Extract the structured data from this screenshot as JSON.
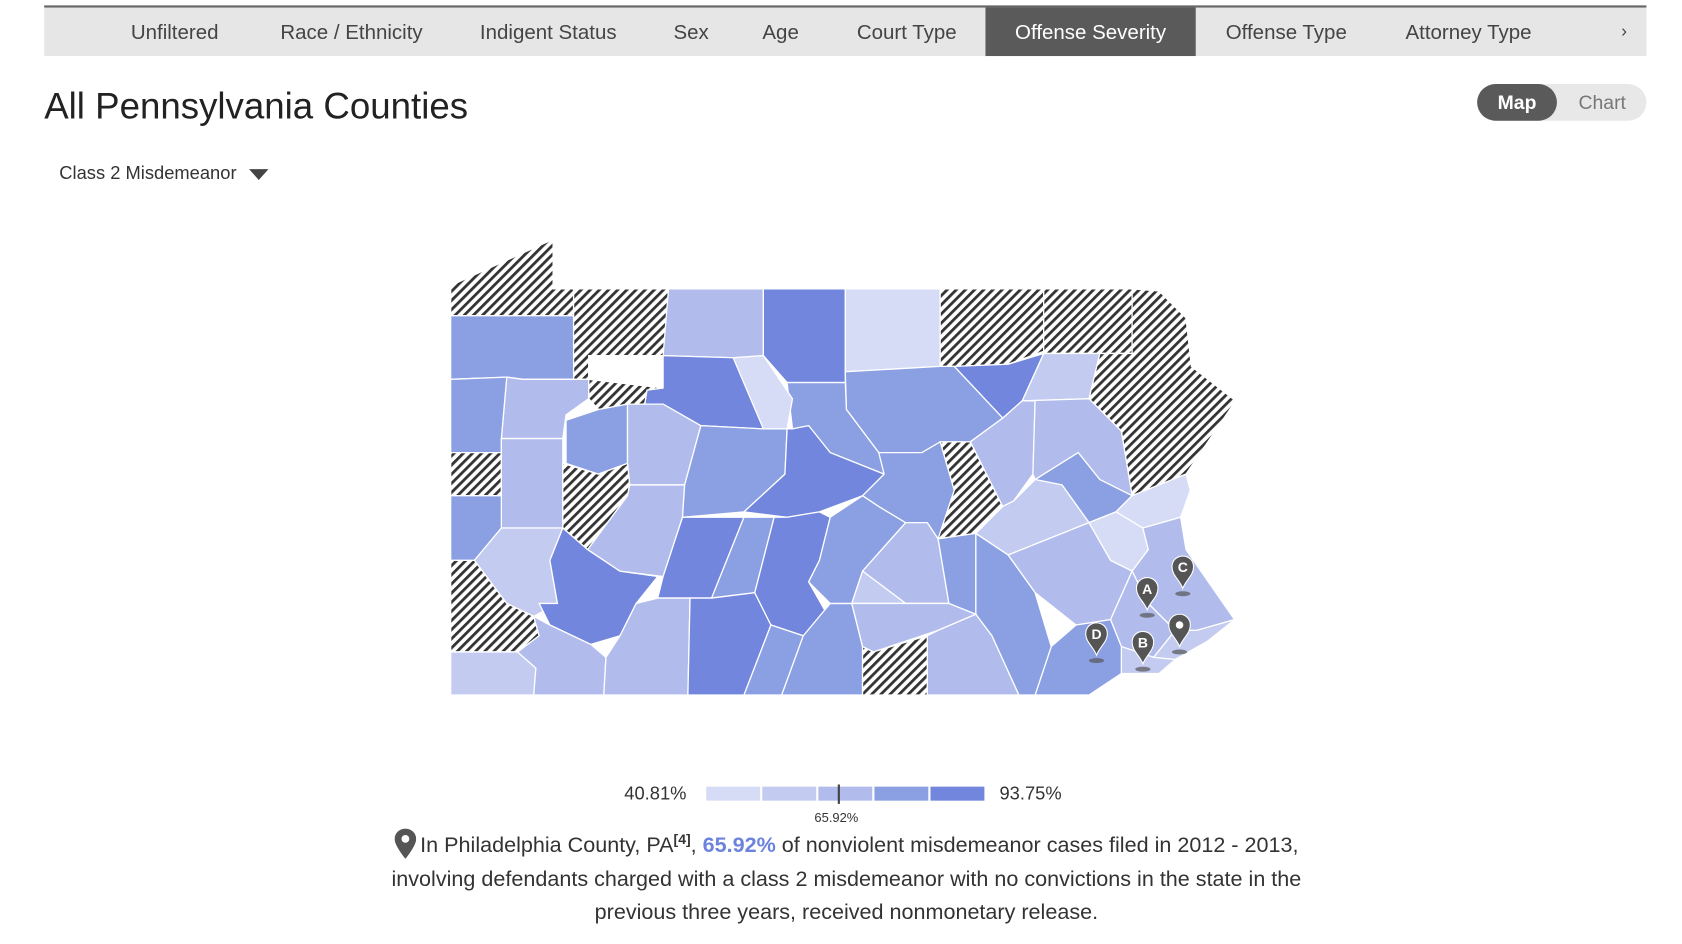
{
  "nav": {
    "tabs": [
      {
        "label": "Unfiltered",
        "active": false
      },
      {
        "label": "Race / Ethnicity",
        "active": false
      },
      {
        "label": "Indigent Status",
        "active": false
      },
      {
        "label": "Sex",
        "active": false
      },
      {
        "label": "Age",
        "active": false
      },
      {
        "label": "Court Type",
        "active": false
      },
      {
        "label": "Offense Severity",
        "active": true
      },
      {
        "label": "Offense Type",
        "active": false
      },
      {
        "label": "Attorney Type",
        "active": false
      }
    ],
    "next_icon": "chevron-right-icon",
    "next_label": "›"
  },
  "page_title": "All Pennsylvania Counties",
  "view_toggle": {
    "options": [
      "Map",
      "Chart"
    ],
    "selected": "Map"
  },
  "filter_dropdown": {
    "selected": "Class 2 Misdemeanor"
  },
  "colors": {
    "level_1": "#d6dcf5",
    "level_2": "#c3cbf1",
    "level_3": "#b1bced",
    "level_4": "#8b9fe3",
    "level_5": "#7186dc",
    "no_data": "hatched",
    "highlight": "#6b83dc",
    "active_tab": "#5a5a5a",
    "pin": "#555555"
  },
  "map": {
    "county_levels": [
      "none",
      4,
      "none",
      3,
      5,
      1,
      "none",
      "none",
      "none",
      2,
      5,
      4,
      4,
      1,
      5,
      "none",
      3,
      4,
      "none",
      3,
      4,
      3,
      "none",
      4,
      2,
      "none",
      2,
      5,
      3,
      3,
      5,
      3,
      4,
      5,
      4,
      5,
      5,
      4,
      4,
      4,
      "none",
      4,
      3,
      3,
      4,
      2,
      1,
      1,
      3,
      3,
      3,
      2,
      2,
      4,
      4,
      4,
      3,
      2,
      3,
      3
    ],
    "pins": [
      {
        "label": "A"
      },
      {
        "label": "B"
      },
      {
        "label": "C"
      },
      {
        "label": "D"
      },
      {
        "label": ""
      }
    ]
  },
  "legend": {
    "min": "40.81%",
    "max": "93.75%",
    "marker_value": 65.92,
    "marker_label": "65.92%"
  },
  "description": {
    "prefix": "In Philadelphia County, PA",
    "footnote": "[4]",
    "comma": ",",
    "highlight": "65.92%",
    "rest": " of nonviolent misdemeanor cases filed in 2012 - 2013, involving defendants charged with a class 2 misdemeanor with no convictions in the state in the previous three years, received nonmonetary release."
  }
}
